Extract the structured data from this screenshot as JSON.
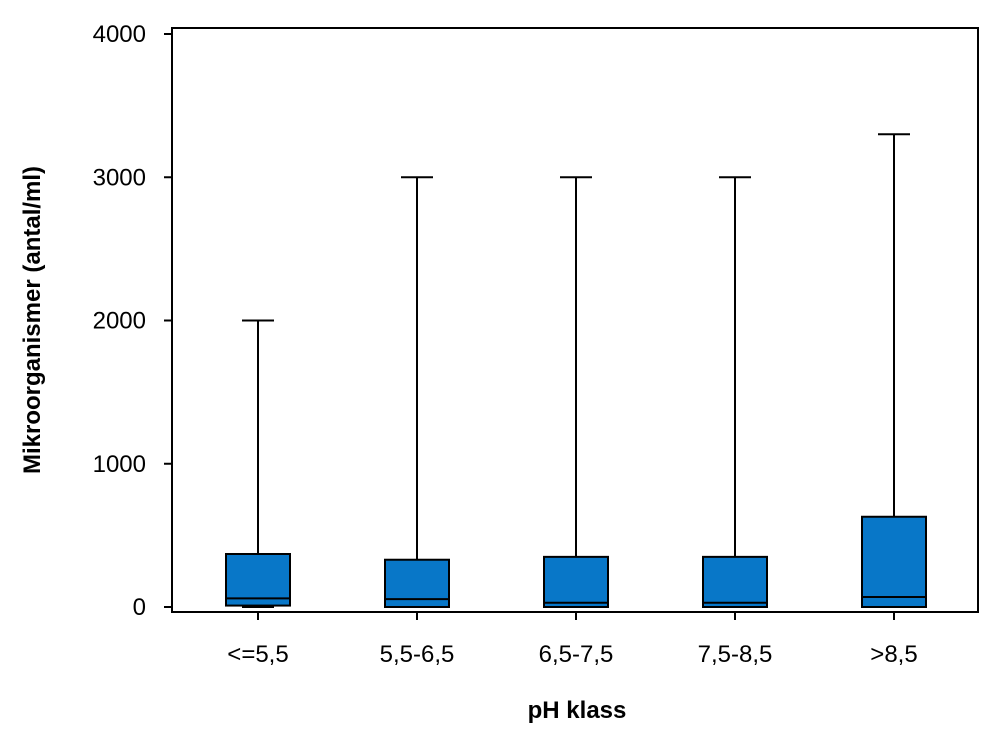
{
  "chart_data": {
    "type": "boxplot",
    "title": "",
    "xlabel": "pH klass",
    "ylabel": "Mikroorganismer (antal/ml)",
    "ylim": [
      0,
      4000
    ],
    "yticks": [
      0,
      1000,
      2000,
      3000,
      4000
    ],
    "ytick_labels": [
      "0",
      "1000",
      "2000",
      "3000",
      "4000"
    ],
    "categories": [
      "<=5,5",
      "5,5-6,5",
      "6,5-7,5",
      "7,5-8,5",
      ">8,5"
    ],
    "boxes": [
      {
        "category": "<=5,5",
        "min": 0,
        "q1": 10,
        "median": 60,
        "q3": 370,
        "max": 2000
      },
      {
        "category": "5,5-6,5",
        "min": 0,
        "q1": 0,
        "median": 55,
        "q3": 330,
        "max": 3000
      },
      {
        "category": "6,5-7,5",
        "min": 0,
        "q1": 0,
        "median": 30,
        "q3": 350,
        "max": 3000
      },
      {
        "category": "7,5-8,5",
        "min": 0,
        "q1": 0,
        "median": 30,
        "q3": 350,
        "max": 3000
      },
      {
        "category": ">8,5",
        "min": 0,
        "q1": 0,
        "median": 70,
        "q3": 630,
        "max": 3300
      }
    ],
    "colors": {
      "box_fill": "#0877C8",
      "stroke": "#000000"
    },
    "grid": false,
    "legend": "none"
  }
}
